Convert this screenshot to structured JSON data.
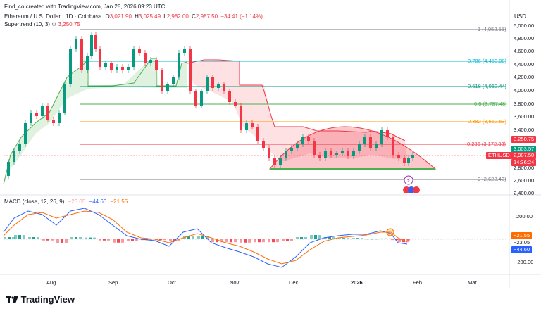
{
  "caption": "Find_co created with TradingView.com, Jan 28, 2026 09:23 UTC",
  "symbol": {
    "title": "Ethereum / U.S. Dollar · 1D · Coinbase",
    "o_label": "O",
    "o": "3,021.90",
    "h_label": "H",
    "h": "3,025.49",
    "l_label": "L",
    "l": "2,982.00",
    "c_label": "C",
    "c": "2,987.50",
    "change": "−34.41 (−1.14%)"
  },
  "supertrend": {
    "label": "Supertrend (10, 3)",
    "value": "3,250.75"
  },
  "currency": "USD",
  "price_axis": [
    "5,000.00",
    "4,800.00",
    "4,600.00",
    "4,400.00",
    "4,200.00",
    "4,000.00",
    "3,800.00",
    "3,600.00",
    "3,400.00",
    "2,800.00",
    "2,600.00",
    "2,400.00"
  ],
  "fib_levels": [
    {
      "label": "1 (4,952.55)",
      "color": "#787b86"
    },
    {
      "label": "0.786 (4,453.90)",
      "color": "#00bcd4"
    },
    {
      "label": "0.618 (4,062.44)",
      "color": "#089981"
    },
    {
      "label": "0.5 (3,787.48)",
      "color": "#4caf50"
    },
    {
      "label": "0.382 (3,512.53)",
      "color": "#ff9800"
    },
    {
      "label": "0.236 (3,172.33)",
      "color": "#f23645"
    },
    {
      "label": "0 (2,622.42)",
      "color": "#787b86"
    }
  ],
  "price_tags": {
    "supertrend": "3,250.75",
    "green": "3,003.57",
    "symbol_name": "ETHUSD",
    "last": "2,987.50",
    "countdown": "14:36:24"
  },
  "macd": {
    "label": "MACD (close, 12, 26, 9)",
    "v1": "−23.05",
    "v2": "−44.60",
    "v3": "−21.55",
    "axis": [
      "200.00",
      "−200.00"
    ],
    "tags": [
      "−21.55",
      "−23.05",
      "−44.60"
    ]
  },
  "x_axis": [
    "Aug",
    "Sep",
    "Oct",
    "Nov",
    "Dec",
    "2026",
    "Feb",
    "Mar"
  ],
  "footer": {
    "logo_text": "TradingView"
  },
  "colors": {
    "up": "#089981",
    "down": "#f23645",
    "supertrend_up": "#4caf50",
    "supertrend_down": "#f23645",
    "macd_line": "#2962ff",
    "signal_line": "#ff6d00"
  }
}
